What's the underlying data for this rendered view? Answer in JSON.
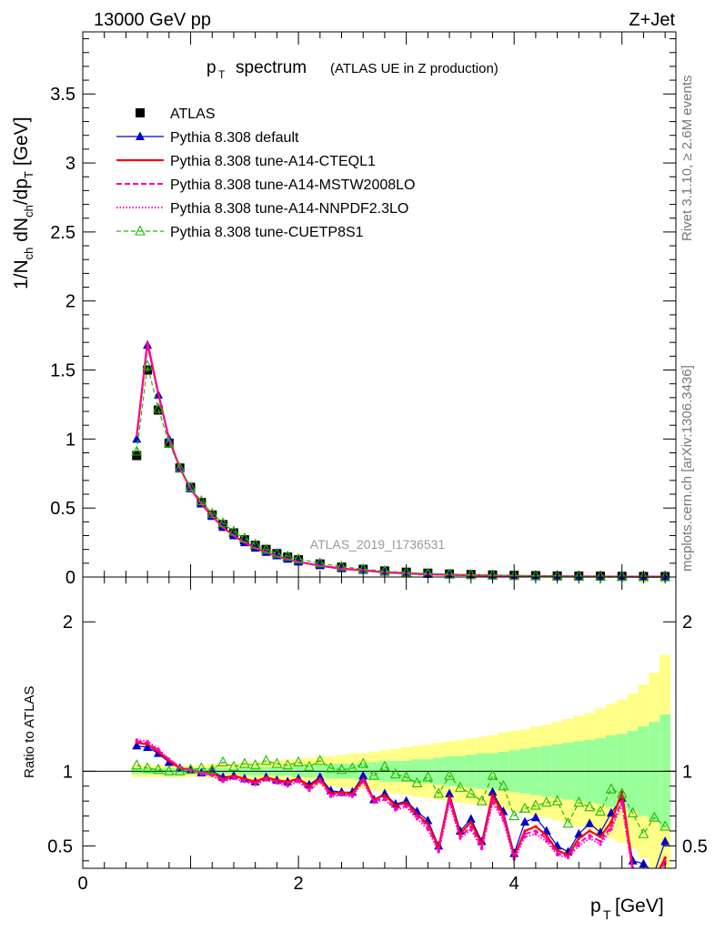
{
  "header": {
    "left": "13000 GeV pp",
    "right": "Z+Jet"
  },
  "side": {
    "top": "Rivet 3.1.10, ≥ 2.6M events",
    "bottom": "mcplots.cern.ch [arXiv:1306.3436]"
  },
  "watermark": "ATLAS_2019_I1736531",
  "colors": {
    "data": "#000000",
    "default": "#0000cc",
    "cteql1": "#ff0000",
    "mstw": "#ff00aa",
    "nnpdf": "#ff00cc",
    "cuetp": "#22bb00",
    "band_yellow": "#ffff88",
    "band_green": "#99ff99"
  },
  "chart_data": [
    {
      "type": "line",
      "title": "p_T spectrum (ATLAS UE in Z production)",
      "title_main": "spectrum",
      "title_sub": "(ATLAS UE in Z production)",
      "xlabel": "p_T [GeV]",
      "ylabel": "1/N_ch dN_ch/dp_T [GeV]",
      "xlim": [
        0,
        5.5
      ],
      "ylim": [
        0,
        3.95
      ],
      "yticks": [
        0,
        0.5,
        1,
        1.5,
        2,
        2.5,
        3,
        3.5
      ],
      "ytick_labels": [
        "0",
        "0.5",
        "1",
        "1.5",
        "2",
        "2.5",
        "3",
        "3.5"
      ],
      "legend_position": "top-left",
      "x": [
        0.5,
        0.6,
        0.7,
        0.8,
        0.9,
        1.0,
        1.1,
        1.2,
        1.3,
        1.4,
        1.5,
        1.6,
        1.7,
        1.8,
        1.9,
        2.0,
        2.2,
        2.4,
        2.6,
        2.8,
        3.0,
        3.2,
        3.4,
        3.6,
        3.8,
        4.0,
        4.2,
        4.4,
        4.6,
        4.8,
        5.0,
        5.2,
        5.4
      ],
      "series": [
        {
          "name": "ATLAS",
          "key": "data",
          "values": [
            0.88,
            1.5,
            1.21,
            0.97,
            0.79,
            0.65,
            0.54,
            0.45,
            0.38,
            0.32,
            0.27,
            0.23,
            0.2,
            0.17,
            0.145,
            0.125,
            0.095,
            0.072,
            0.056,
            0.044,
            0.035,
            0.028,
            0.022,
            0.018,
            0.015,
            0.012,
            0.01,
            0.008,
            0.007,
            0.006,
            0.005,
            0.004,
            0.0035
          ]
        },
        {
          "name": "Pythia 8.308 default",
          "key": "default",
          "values": [
            1.0,
            1.68,
            1.32,
            1.0,
            0.79,
            0.64,
            0.53,
            0.44,
            0.36,
            0.3,
            0.25,
            0.21,
            0.18,
            0.155,
            0.13,
            0.11,
            0.083,
            0.062,
            0.05,
            0.036,
            0.028,
            0.021,
            0.018,
            0.013,
            0.011,
            0.008,
            0.007,
            0.005,
            0.0045,
            0.004,
            0.003,
            0.0025,
            0.002
          ]
        },
        {
          "name": "Pythia 8.308 tune-A14-CTEQL1",
          "key": "cteql1",
          "values": [
            1.02,
            1.7,
            1.33,
            1.0,
            0.79,
            0.64,
            0.53,
            0.44,
            0.36,
            0.3,
            0.25,
            0.21,
            0.18,
            0.15,
            0.13,
            0.11,
            0.082,
            0.061,
            0.049,
            0.035,
            0.027,
            0.02,
            0.017,
            0.013,
            0.01,
            0.008,
            0.006,
            0.005,
            0.004,
            0.0035,
            0.003,
            0.0025,
            0.002
          ]
        },
        {
          "name": "Pythia 8.308 tune-A14-MSTW2008LO",
          "key": "mstw",
          "values": [
            1.02,
            1.7,
            1.33,
            1.0,
            0.79,
            0.64,
            0.53,
            0.44,
            0.36,
            0.3,
            0.25,
            0.21,
            0.18,
            0.15,
            0.13,
            0.11,
            0.082,
            0.06,
            0.048,
            0.034,
            0.026,
            0.02,
            0.016,
            0.012,
            0.01,
            0.007,
            0.006,
            0.005,
            0.004,
            0.0035,
            0.003,
            0.0025,
            0.002
          ]
        },
        {
          "name": "Pythia 8.308 tune-A14-NNPDF2.3LO",
          "key": "nnpdf",
          "values": [
            1.02,
            1.71,
            1.33,
            1.0,
            0.79,
            0.64,
            0.53,
            0.44,
            0.36,
            0.3,
            0.25,
            0.21,
            0.18,
            0.15,
            0.13,
            0.11,
            0.081,
            0.06,
            0.047,
            0.033,
            0.025,
            0.019,
            0.016,
            0.012,
            0.009,
            0.007,
            0.006,
            0.005,
            0.004,
            0.0035,
            0.003,
            0.0025,
            0.002
          ]
        },
        {
          "name": "Pythia 8.308 tune-CUETP8S1",
          "key": "cuetp",
          "values": [
            0.91,
            1.53,
            1.22,
            0.97,
            0.79,
            0.65,
            0.55,
            0.46,
            0.39,
            0.33,
            0.28,
            0.235,
            0.2,
            0.17,
            0.15,
            0.13,
            0.1,
            0.075,
            0.058,
            0.043,
            0.033,
            0.026,
            0.021,
            0.016,
            0.013,
            0.01,
            0.008,
            0.006,
            0.005,
            0.0045,
            0.004,
            0.0032,
            0.0025
          ]
        }
      ]
    },
    {
      "type": "line",
      "title": "",
      "xlabel": "p_T [GeV]",
      "ylabel": "Ratio to ATLAS",
      "xlim": [
        0,
        5.5
      ],
      "ylim": [
        0.35,
        2.3
      ],
      "yticks": [
        0.5,
        1,
        2
      ],
      "ytick_labels": [
        "0.5",
        "1",
        "2"
      ],
      "xticks": [
        0,
        2,
        4
      ],
      "xtick_labels": [
        "0",
        "2",
        "4"
      ],
      "x": [
        0.5,
        0.6,
        0.7,
        0.8,
        0.9,
        1.0,
        1.1,
        1.2,
        1.3,
        1.4,
        1.5,
        1.6,
        1.7,
        1.8,
        1.9,
        2.0,
        2.1,
        2.2,
        2.3,
        2.4,
        2.5,
        2.6,
        2.7,
        2.8,
        2.9,
        3.0,
        3.1,
        3.2,
        3.3,
        3.4,
        3.5,
        3.6,
        3.7,
        3.8,
        3.9,
        4.0,
        4.1,
        4.2,
        4.3,
        4.4,
        4.5,
        4.6,
        4.7,
        4.8,
        4.9,
        5.0,
        5.1,
        5.2,
        5.3,
        5.4
      ],
      "bands": {
        "yellow_halfwidth": [
          0.04,
          0.04,
          0.04,
          0.04,
          0.04,
          0.04,
          0.04,
          0.05,
          0.05,
          0.05,
          0.06,
          0.06,
          0.07,
          0.07,
          0.08,
          0.08,
          0.09,
          0.1,
          0.1,
          0.11,
          0.12,
          0.12,
          0.13,
          0.14,
          0.15,
          0.16,
          0.17,
          0.18,
          0.19,
          0.2,
          0.21,
          0.22,
          0.23,
          0.24,
          0.26,
          0.27,
          0.28,
          0.3,
          0.31,
          0.33,
          0.35,
          0.37,
          0.39,
          0.42,
          0.45,
          0.48,
          0.52,
          0.58,
          0.66,
          0.78
        ],
        "green_halfwidth": [
          0.02,
          0.02,
          0.02,
          0.02,
          0.02,
          0.02,
          0.02,
          0.02,
          0.02,
          0.02,
          0.03,
          0.03,
          0.03,
          0.03,
          0.03,
          0.04,
          0.04,
          0.04,
          0.05,
          0.05,
          0.05,
          0.06,
          0.06,
          0.07,
          0.07,
          0.07,
          0.08,
          0.08,
          0.09,
          0.1,
          0.1,
          0.11,
          0.12,
          0.12,
          0.13,
          0.14,
          0.15,
          0.16,
          0.17,
          0.18,
          0.19,
          0.2,
          0.21,
          0.22,
          0.24,
          0.25,
          0.27,
          0.3,
          0.33,
          0.38
        ]
      },
      "series": [
        {
          "name": "Pythia 8.308 default",
          "key": "default",
          "values": [
            1.17,
            1.16,
            1.12,
            1.06,
            1.02,
            1.01,
            0.99,
            1.0,
            0.96,
            0.97,
            0.95,
            0.93,
            0.96,
            0.94,
            0.93,
            0.95,
            0.91,
            0.96,
            0.87,
            0.86,
            0.86,
            0.97,
            0.81,
            0.85,
            0.78,
            0.8,
            0.73,
            0.67,
            0.5,
            0.85,
            0.6,
            0.68,
            0.53,
            0.86,
            0.73,
            0.45,
            0.66,
            0.69,
            0.6,
            0.5,
            0.46,
            0.58,
            0.65,
            0.59,
            0.72,
            0.82,
            0.4,
            0.38,
            0.32,
            0.53
          ]
        },
        {
          "name": "Pythia 8.308 tune-A14-CTEQL1",
          "key": "cteql1",
          "values": [
            1.19,
            1.18,
            1.13,
            1.07,
            1.02,
            1.01,
            0.99,
            0.99,
            0.95,
            0.97,
            0.95,
            0.93,
            0.96,
            0.94,
            0.93,
            0.95,
            0.9,
            0.95,
            0.85,
            0.86,
            0.85,
            0.95,
            0.81,
            0.84,
            0.77,
            0.79,
            0.71,
            0.65,
            0.49,
            0.83,
            0.58,
            0.66,
            0.51,
            0.84,
            0.71,
            0.43,
            0.6,
            0.63,
            0.57,
            0.47,
            0.44,
            0.55,
            0.6,
            0.56,
            0.66,
            0.86,
            0.35,
            0.33,
            0.28,
            0.42
          ]
        },
        {
          "name": "Pythia 8.308 tune-A14-MSTW2008LO",
          "key": "mstw",
          "values": [
            1.2,
            1.19,
            1.14,
            1.08,
            1.03,
            1.01,
            0.99,
            0.98,
            0.94,
            0.96,
            0.94,
            0.92,
            0.95,
            0.93,
            0.92,
            0.94,
            0.88,
            0.94,
            0.84,
            0.85,
            0.84,
            0.94,
            0.8,
            0.82,
            0.75,
            0.77,
            0.7,
            0.63,
            0.47,
            0.81,
            0.56,
            0.63,
            0.49,
            0.81,
            0.69,
            0.42,
            0.58,
            0.6,
            0.55,
            0.45,
            0.43,
            0.52,
            0.57,
            0.53,
            0.63,
            0.8,
            0.33,
            0.31,
            0.26,
            0.4
          ]
        },
        {
          "name": "Pythia 8.308 tune-A14-NNPDF2.3LO",
          "key": "nnpdf",
          "values": [
            1.21,
            1.2,
            1.15,
            1.08,
            1.03,
            1.0,
            0.98,
            0.97,
            0.93,
            0.95,
            0.93,
            0.91,
            0.94,
            0.92,
            0.9,
            0.93,
            0.87,
            0.93,
            0.83,
            0.84,
            0.83,
            0.93,
            0.79,
            0.81,
            0.74,
            0.76,
            0.68,
            0.61,
            0.46,
            0.79,
            0.55,
            0.61,
            0.48,
            0.79,
            0.67,
            0.41,
            0.56,
            0.58,
            0.53,
            0.44,
            0.42,
            0.5,
            0.55,
            0.51,
            0.61,
            0.78,
            0.32,
            0.3,
            0.25,
            0.38
          ]
        },
        {
          "name": "Pythia 8.308 tune-CUETP8S1",
          "key": "cuetp",
          "values": [
            1.04,
            1.02,
            1.01,
            1.0,
            1.0,
            1.01,
            1.02,
            1.01,
            1.06,
            1.03,
            1.05,
            1.04,
            1.07,
            1.05,
            1.04,
            1.06,
            1.03,
            1.07,
            1.02,
            1.01,
            1.02,
            1.05,
            0.97,
            1.03,
            0.98,
            0.96,
            0.92,
            0.96,
            0.85,
            0.97,
            0.89,
            0.85,
            0.8,
            0.97,
            0.9,
            0.7,
            0.75,
            0.77,
            0.79,
            0.8,
            0.65,
            0.79,
            0.76,
            0.73,
            0.88,
            0.85,
            0.72,
            0.58,
            0.69,
            0.63
          ]
        }
      ]
    }
  ],
  "legend_items": [
    {
      "label": "ATLAS",
      "key": "data"
    },
    {
      "label": "Pythia 8.308 default",
      "key": "default"
    },
    {
      "label": "Pythia 8.308 tune-A14-CTEQL1",
      "key": "cteql1"
    },
    {
      "label": "Pythia 8.308 tune-A14-MSTW2008LO",
      "key": "mstw"
    },
    {
      "label": "Pythia 8.308 tune-A14-NNPDF2.3LO",
      "key": "nnpdf"
    },
    {
      "label": "Pythia 8.308 tune-CUETP8S1",
      "key": "cuetp"
    }
  ]
}
